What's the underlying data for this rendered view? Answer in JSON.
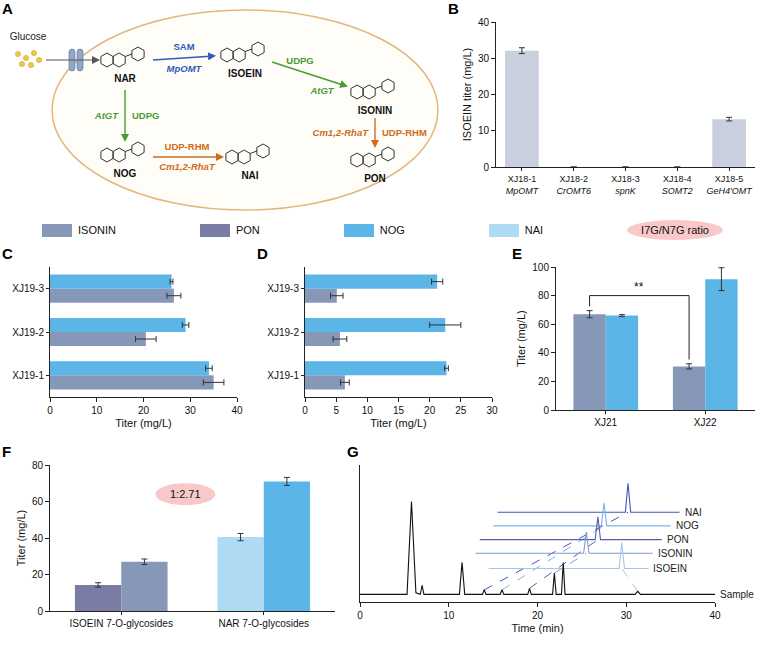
{
  "legend_items": [
    {
      "name": "ISONIN",
      "color": "#8797b8"
    },
    {
      "name": "PON",
      "color": "#7b7ca6"
    },
    {
      "name": "NOG",
      "color": "#5bb5e6"
    },
    {
      "name": "NAI",
      "color": "#aedbf3"
    },
    {
      "name": "I7G/N7G ratio",
      "color": "#f9c9c9",
      "marker": "ellipse"
    }
  ],
  "diagram": {
    "panel": "A",
    "source": "Glucose",
    "compounds": [
      "NAR",
      "ISOEIN",
      "ISONIN",
      "NOG",
      "NAI",
      "PON"
    ],
    "steps": [
      {
        "from": "NAR",
        "to": "ISOEIN",
        "cofactor": "SAM",
        "enzyme": "MpOMT",
        "color": "#2e5cb8"
      },
      {
        "from": "ISOEIN",
        "to": "ISONIN",
        "cofactor": "UDPG",
        "enzyme": "AtGT",
        "color": "#4b9b34"
      },
      {
        "from": "NAR",
        "to": "NOG",
        "cofactor": "UDPG",
        "enzyme": "AtGT",
        "color": "#4b9b34"
      },
      {
        "from": "NOG",
        "to": "NAI",
        "cofactor": "UDP-RHM",
        "enzyme": "Cm1,2-RhaT",
        "color": "#d06a1c"
      },
      {
        "from": "ISONIN",
        "to": "PON",
        "cofactor": "UDP-RHM",
        "enzyme": "Cm1,2-RhaT",
        "color": "#d06a1c"
      }
    ]
  },
  "chart_data": [
    {
      "panel": "B",
      "type": "bar",
      "categories": [
        "XJ18-1",
        "XJ18-2",
        "XJ18-3",
        "XJ18-4",
        "XJ18-5"
      ],
      "category_sublabels": [
        "MpOMT",
        "CrOMT6",
        "spnK",
        "SOMT2",
        "GeH4'OMT"
      ],
      "values": [
        32.1,
        0,
        0,
        0,
        13.2
      ],
      "errors": [
        0.8,
        0,
        0,
        0,
        0.5
      ],
      "color": "#c9cfdc",
      "y_label": "ISOEIN titer (mg/L)",
      "ylim": [
        0,
        40
      ],
      "yticks": [
        0,
        10,
        20,
        30,
        40
      ]
    },
    {
      "panel": "C",
      "type": "bar",
      "orientation": "horizontal",
      "categories": [
        "XJ19-1",
        "XJ19-2",
        "XJ19-3"
      ],
      "series": [
        {
          "name": "ISONIN",
          "color": "#8797b8",
          "values": [
            35,
            20.5,
            26.5
          ],
          "errors": [
            2.2,
            2.2,
            1.5
          ]
        },
        {
          "name": "NOG",
          "color": "#5bb5e6",
          "values": [
            34,
            29,
            26
          ],
          "errors": [
            0.7,
            0.7,
            0.3
          ]
        }
      ],
      "x_label": "Titer (mg/L)",
      "xlim": [
        0,
        40
      ],
      "xticks": [
        0,
        10,
        20,
        30,
        40
      ]
    },
    {
      "panel": "D",
      "type": "bar",
      "orientation": "horizontal",
      "categories": [
        "XJ19-1",
        "XJ19-2",
        "XJ19-3"
      ],
      "series": [
        {
          "name": "ISONIN",
          "color": "#8797b8",
          "values": [
            6.4,
            5.6,
            5.1
          ],
          "errors": [
            0.7,
            1.1,
            1.0
          ]
        },
        {
          "name": "NOG",
          "color": "#5bb5e6",
          "values": [
            22.7,
            22.5,
            21.2
          ],
          "errors": [
            0.3,
            2.5,
            0.9
          ]
        }
      ],
      "x_label": "Titer (mg/L)",
      "xlim": [
        0,
        30
      ],
      "xticks": [
        0,
        5,
        10,
        15,
        20,
        25,
        30
      ]
    },
    {
      "panel": "E",
      "type": "bar",
      "categories": [
        "XJ21",
        "XJ22"
      ],
      "series": [
        {
          "name": "ISONIN",
          "color": "#8797b8",
          "values": [
            67,
            30.5
          ],
          "errors": [
            2.5,
            1.8
          ]
        },
        {
          "name": "NOG",
          "color": "#5bb5e6",
          "values": [
            66,
            91.5
          ],
          "errors": [
            0.7,
            8
          ]
        }
      ],
      "y_label": "Titer (mg/L)",
      "ylim": [
        0,
        100
      ],
      "yticks": [
        0,
        20,
        40,
        60,
        80,
        100
      ],
      "significance": {
        "series": "ISONIN",
        "categories": [
          "XJ21",
          "XJ22"
        ],
        "label": "**",
        "y": 80
      }
    },
    {
      "panel": "F",
      "type": "bar",
      "categories": [
        "ISOEIN 7-O-glycosides",
        "NAR 7-O-glycosides"
      ],
      "series": [
        {
          "name": "PON",
          "color": "#7b7ca6",
          "values": [
            14.3,
            null
          ],
          "errors": [
            1.2,
            null
          ]
        },
        {
          "name": "NAI",
          "color": "#aedbf3",
          "values": [
            null,
            40.5
          ],
          "errors": [
            null,
            2
          ]
        },
        {
          "name": "ISONIN",
          "color": "#8797b8",
          "values": [
            27,
            null
          ],
          "errors": [
            1.5,
            null
          ]
        },
        {
          "name": "NOG",
          "color": "#5bb5e6",
          "values": [
            null,
            71
          ],
          "errors": [
            null,
            2.2
          ]
        }
      ],
      "y_label": "Titer (mg/L)",
      "ylim": [
        0,
        80
      ],
      "yticks": [
        0,
        20,
        40,
        60,
        80
      ],
      "annotations": [
        {
          "text": "1:2.71",
          "y": 64,
          "color": "#f9c9c9"
        }
      ]
    },
    {
      "panel": "G",
      "type": "line",
      "x_label": "Time (min)",
      "xlim": [
        0,
        40
      ],
      "xticks": [
        0,
        10,
        20,
        30,
        40
      ],
      "ylim": [
        0,
        9
      ],
      "yticks": [],
      "tick_labels": "x",
      "series": [
        {
          "name": "NAI",
          "color": "#3f56c0",
          "x": [
            15.5,
            29.9,
            30.2,
            30.5,
            36
          ],
          "y": [
            5.9,
            5.9,
            7.8,
            5.9,
            5.9
          ],
          "match": {
            "x": [
              14.0,
              30.2
            ],
            "y": [
              0.8,
              5.9
            ],
            "line_style": "dashed"
          }
        },
        {
          "name": "NOG",
          "color": "#7fb3e3",
          "x": [
            15,
            27.2,
            27.5,
            27.8,
            35
          ],
          "y": [
            5.0,
            5.0,
            6.5,
            5.0,
            5.0
          ],
          "match": {
            "x": [
              16.0,
              27.5
            ],
            "y": [
              0.8,
              5.0
            ],
            "line_style": "dashed"
          }
        },
        {
          "name": "PON",
          "color": "#5560a8",
          "x": [
            13.5,
            26.5,
            26.8,
            27.1,
            34
          ],
          "y": [
            4.1,
            4.1,
            5.6,
            4.1,
            4.1
          ],
          "match": {
            "x": [
              19.1,
              26.8
            ],
            "y": [
              0.9,
              4.1
            ],
            "line_style": "dashed"
          }
        },
        {
          "name": "ISONIN",
          "color": "#7f9ad0",
          "x": [
            13,
            25.2,
            25.5,
            25.8,
            33
          ],
          "y": [
            3.2,
            3.2,
            4.6,
            3.2,
            3.2
          ],
          "match": {
            "x": [
              21.9,
              25.5
            ],
            "y": [
              1.9,
              3.2
            ],
            "line_style": "dashed"
          }
        },
        {
          "name": "ISOEIN",
          "color": "#a9c4ea",
          "x": [
            14.5,
            29.2,
            29.5,
            29.8,
            32.5
          ],
          "y": [
            2.2,
            2.2,
            3.9,
            2.2,
            2.2
          ],
          "match": {
            "x": [
              31.3,
              29.5
            ],
            "y": [
              0.7,
              2.2
            ],
            "line_style": "dashed"
          }
        },
        {
          "name": "Sample",
          "color": "#111111",
          "x": [
            0,
            5.3,
            5.8,
            6.3,
            6.8,
            7.0,
            7.2,
            11.2,
            11.5,
            11.8,
            13.8,
            14.0,
            14.2,
            15.8,
            16.0,
            16.2,
            18.9,
            19.1,
            19.3,
            21.7,
            21.9,
            22.1,
            22.7,
            22.9,
            23.1,
            31.0,
            31.3,
            31.6,
            40
          ],
          "y": [
            0.5,
            0.5,
            6.6,
            0.6,
            0.5,
            1.1,
            0.5,
            0.5,
            2.6,
            0.5,
            0.5,
            0.8,
            0.5,
            0.5,
            0.8,
            0.5,
            0.5,
            0.9,
            0.5,
            0.5,
            1.9,
            0.5,
            0.5,
            2.6,
            0.5,
            0.5,
            0.7,
            0.5,
            0.5
          ]
        }
      ]
    }
  ]
}
